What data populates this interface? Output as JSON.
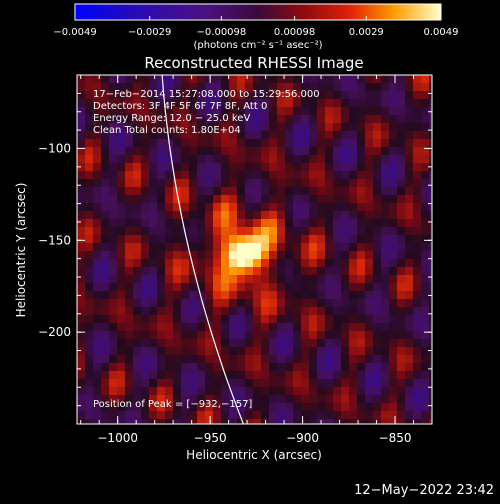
{
  "chart_data": {
    "type": "heatmap",
    "title": "Reconstructed RHESSI Image",
    "xlabel": "Heliocentric X (arcsec)",
    "ylabel": "Heliocentric Y (arcsec)",
    "xlim": [
      -1022,
      -830
    ],
    "ylim": [
      -250,
      -60
    ],
    "x_ticks": [
      -1000,
      -950,
      -900,
      -850
    ],
    "x_tick_labels": [
      "−1000",
      "−950",
      "−900",
      "−850"
    ],
    "y_ticks": [
      -200,
      -150,
      -100
    ],
    "y_tick_labels": [
      "−200",
      "−150",
      "−100"
    ],
    "colorbar": {
      "min": -0.0049,
      "max": 0.0049,
      "ticks": [
        -0.0049,
        -0.0029,
        -0.00098,
        0.00098,
        0.0029,
        0.0049
      ],
      "tick_labels": [
        "−0.0049",
        "−0.0029",
        "−0.00098",
        "0.00098",
        "0.0029",
        "0.0049"
      ],
      "units_label": "(photons cm⁻² s⁻¹ asec⁻²)"
    },
    "annotations": [
      "17−Feb−2014 15:27:08.000 to 15:29:56.000",
      "Detectors: 3F 4F 5F 6F 7F 8F, Att 0",
      "Energy Range: 12.0 − 25.0 keV",
      "Clean     Total counts: 1.80E+04"
    ],
    "peak_label": "Position of Peak = [−932,−157]",
    "peak": {
      "x": -932,
      "y": -157
    },
    "colors": {
      "background": "#000000",
      "limb": "#ffffff"
    }
  },
  "footer": {
    "timestamp": "12−May−2022 23:42"
  }
}
